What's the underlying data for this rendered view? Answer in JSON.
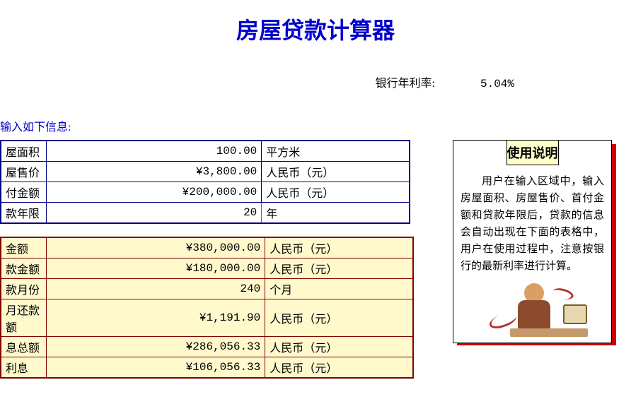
{
  "title": "房屋贷款计算器",
  "rate": {
    "label": "银行年利率:",
    "value": "5.04%"
  },
  "input_prompt": "输入如下信息:",
  "input_table": {
    "rows": [
      {
        "label": "屋面积",
        "value": "100.00",
        "unit": "平方米"
      },
      {
        "label": "屋售价",
        "value": "¥3,800.00",
        "unit": "人民币（元）"
      },
      {
        "label": "付金额",
        "value": "¥200,000.00",
        "unit": "人民币（元）"
      },
      {
        "label": "款年限",
        "value": "20",
        "unit": "年"
      }
    ],
    "border_color": "#000080",
    "highlight_border_color": "#339933"
  },
  "output_table": {
    "rows": [
      {
        "label": "金额",
        "value": "¥380,000.00",
        "unit": "人民币（元）"
      },
      {
        "label": "款金额",
        "value": "¥180,000.00",
        "unit": "人民币（元）"
      },
      {
        "label": "款月份",
        "value": "240",
        "unit": "个月"
      },
      {
        "label": "月还款额",
        "value": "¥1,191.90",
        "unit": "人民币（元）"
      },
      {
        "label": "息总额",
        "value": "¥286,056.33",
        "unit": "人民币（元）"
      },
      {
        "label": "利息",
        "value": "¥106,056.33",
        "unit": "人民币（元）"
      }
    ],
    "background_color": "#fff9cc",
    "border_color": "#800000"
  },
  "help": {
    "title": "使用说明",
    "text": "用户在输入区域中，输入房屋面积、房屋售价、首付金额和贷款年限后，贷款的信息会自动出现在下面的表格中，用户在使用过程中，注意按银行的最新利率进行计算。",
    "title_bg": "#ffffcc",
    "shadow_color": "#cc0000"
  },
  "colors": {
    "title_color": "#0000cc",
    "page_bg": "#ffffff"
  }
}
